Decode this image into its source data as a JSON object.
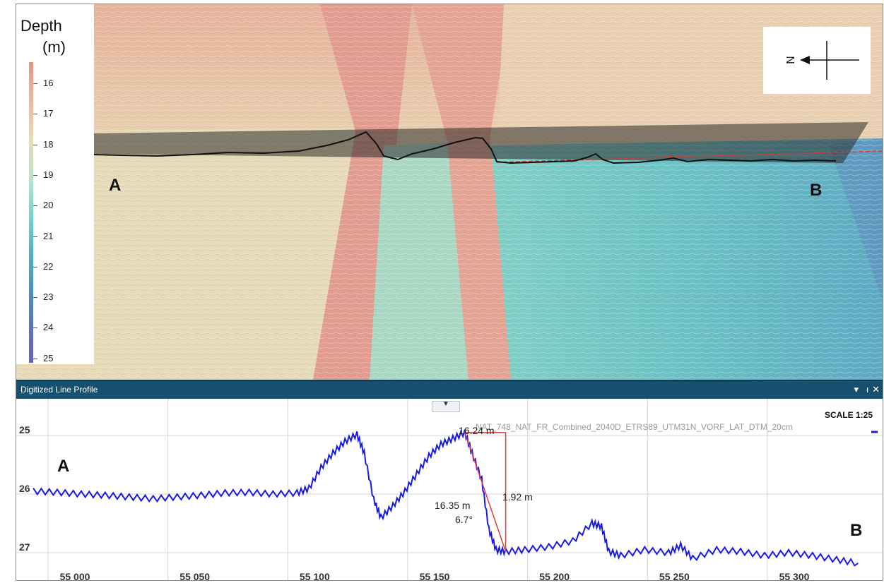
{
  "legend": {
    "title_line1": "Depth",
    "title_line2": "(m)",
    "labels": [
      "16",
      "17",
      "18",
      "19",
      "20",
      "21",
      "22",
      "23",
      "24",
      "25"
    ]
  },
  "compass": {
    "north_label": "N"
  },
  "viewport": {
    "point_a": "A",
    "point_b": "B"
  },
  "panel": {
    "title": "Digitized Line Profile",
    "controls": {
      "menu": "▾",
      "pin": "ᵻ",
      "close": "✕"
    }
  },
  "profile": {
    "scale_label": "SCALE 1:25",
    "dataset_label": "NAT_748_NAT_FR_Combined_2040D_ETRS89_UTM31N_VORF_LAT_DTM_20cm",
    "point_a": "A",
    "point_b": "B",
    "measure_horizontal": "16.24 m",
    "measure_vertical": "1.92 m",
    "measure_hypotenuse": "16.35 m",
    "measure_angle": "6.7°"
  },
  "chart_data": {
    "type": "line",
    "title": "",
    "xlabel": "",
    "ylabel": "",
    "x_ticks": [
      "55 000",
      "55 050",
      "55 100",
      "55 150",
      "55 200",
      "55 250",
      "55 300"
    ],
    "y_ticks": [
      "25",
      "26",
      "27"
    ],
    "ylim": [
      24.8,
      27.2
    ],
    "y_inverted": true,
    "series": [
      {
        "name": "NAT_748_NAT_FR_Combined_2040D_ETRS89_UTM31N_VORF_LAT_DTM_20cm",
        "color": "#1a1ae6",
        "x": [
          54985,
          54995,
          55005,
          55015,
          55025,
          55035,
          55045,
          55055,
          55065,
          55075,
          55085,
          55095,
          55100,
          55105,
          55110,
          55115,
          55120,
          55123,
          55127,
          55130,
          55135,
          55140,
          55145,
          55150,
          55155,
          55160,
          55165,
          55168,
          55172,
          55175,
          55178,
          55182,
          55190,
          55200,
          55210,
          55218,
          55222,
          55225,
          55230,
          55240,
          55250,
          55255,
          55260,
          55270,
          55280,
          55290,
          55300,
          55310,
          55320,
          55329
        ],
        "y": [
          25.95,
          25.97,
          26.0,
          26.02,
          26.05,
          26.08,
          26.05,
          26.02,
          25.98,
          25.97,
          26.0,
          25.98,
          25.9,
          25.55,
          25.3,
          25.1,
          24.98,
          25.3,
          26.1,
          26.4,
          26.2,
          25.95,
          25.65,
          25.35,
          25.15,
          25.05,
          24.95,
          25.3,
          25.75,
          26.6,
          26.95,
          26.98,
          26.95,
          26.9,
          26.8,
          26.5,
          26.55,
          26.98,
          27.05,
          26.95,
          27.0,
          26.88,
          27.1,
          26.95,
          26.98,
          27.05,
          27.0,
          27.05,
          27.12,
          27.18
        ]
      }
    ]
  }
}
